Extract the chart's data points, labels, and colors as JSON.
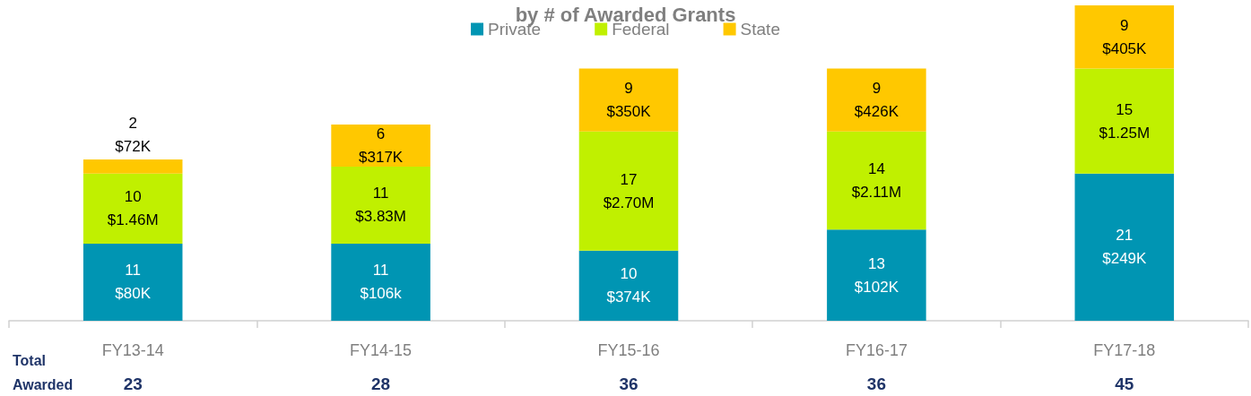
{
  "chart_data": {
    "type": "bar",
    "title": "by # of Awarded Grants",
    "categories": [
      "FY13-14",
      "FY14-15",
      "FY15-16",
      "FY16-17",
      "FY17-18"
    ],
    "stacked": true,
    "legend": "top",
    "series": [
      {
        "name": "Private",
        "color": "#0095b3",
        "values": [
          11,
          11,
          10,
          13,
          21
        ],
        "value_labels": [
          "11\n$80K",
          "11\n$106k",
          "10\n$374K",
          "13\n$102K",
          "21\n$249K"
        ]
      },
      {
        "name": "Federal",
        "color": "#c0f000",
        "values": [
          10,
          11,
          17,
          14,
          15
        ],
        "value_labels": [
          "10\n$1.46M",
          "11\n$3.83M",
          "17\n$2.70M",
          "14\n$2.11M",
          "15\n$1.25M"
        ]
      },
      {
        "name": "State",
        "color": "#ffc800",
        "values": [
          2,
          6,
          9,
          9,
          9
        ],
        "value_labels": [
          "2\n$72K",
          "6\n$317K",
          "9\n$350K",
          "9\n$426K",
          "9\n$405K"
        ]
      }
    ],
    "totals": [
      "23",
      "28",
      "36",
      "36",
      "45"
    ],
    "annotations": [
      "Total Awarded"
    ]
  }
}
